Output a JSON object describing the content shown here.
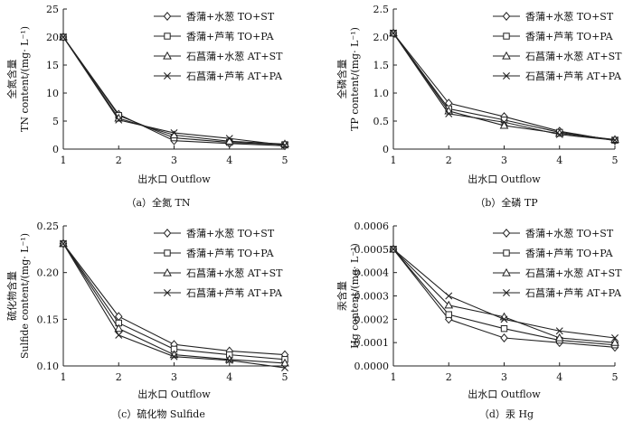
{
  "chart_data": [
    {
      "type": "line",
      "id": "tn",
      "caption": "（a）全氮 TN",
      "xlabel": "出水口 Outflow",
      "ylabel_cn": "全氮含量",
      "ylabel_en": "TN content/(mg· L⁻¹)",
      "categories": [
        1,
        2,
        3,
        4,
        5
      ],
      "ylim": [
        0,
        25
      ],
      "yticks": [
        0,
        5,
        10,
        15,
        20,
        25
      ],
      "ytick_labels": [
        "0",
        "5",
        "10",
        "15",
        "20",
        "25"
      ],
      "series": [
        {
          "name": "香蒲+水葱 TO+ST",
          "marker": "diamond",
          "values": [
            20,
            6.2,
            1.5,
            1.0,
            0.6
          ]
        },
        {
          "name": "香蒲+芦苇 TO+PA",
          "marker": "square",
          "values": [
            20,
            6.0,
            2.0,
            1.2,
            0.8
          ]
        },
        {
          "name": "石菖蒲+水葱 AT+ST",
          "marker": "triangle",
          "values": [
            20,
            5.5,
            2.5,
            1.4,
            0.9
          ]
        },
        {
          "name": "石菖蒲+芦苇 AT+PA",
          "marker": "x",
          "values": [
            20,
            5.2,
            2.9,
            1.9,
            0.7
          ]
        }
      ]
    },
    {
      "type": "line",
      "id": "tp",
      "caption": "（b）全磷 TP",
      "xlabel": "出水口 Outflow",
      "ylabel_cn": "全磷含量",
      "ylabel_en": "TP content/(mg· L⁻¹)",
      "categories": [
        1,
        2,
        3,
        4,
        5
      ],
      "ylim": [
        0,
        2.5
      ],
      "yticks": [
        0,
        0.5,
        1.0,
        1.5,
        2.0,
        2.5
      ],
      "ytick_labels": [
        "0",
        "0.5",
        "1.0",
        "1.5",
        "2.0",
        "2.5"
      ],
      "series": [
        {
          "name": "香蒲+水葱 TO+ST",
          "marker": "diamond",
          "values": [
            2.07,
            0.82,
            0.58,
            0.32,
            0.15
          ]
        },
        {
          "name": "香蒲+芦苇 TO+PA",
          "marker": "square",
          "values": [
            2.07,
            0.72,
            0.52,
            0.3,
            0.16
          ]
        },
        {
          "name": "石菖蒲+水葱 AT+ST",
          "marker": "triangle",
          "values": [
            2.07,
            0.68,
            0.42,
            0.28,
            0.17
          ]
        },
        {
          "name": "石菖蒲+芦苇 AT+PA",
          "marker": "x",
          "values": [
            2.07,
            0.63,
            0.48,
            0.26,
            0.16
          ]
        }
      ]
    },
    {
      "type": "line",
      "id": "sulfide",
      "caption": "（c）硫化物 Sulfide",
      "xlabel": "出水口 Outflow",
      "ylabel_cn": "硫化物含量",
      "ylabel_en": "Sulfide content/(mg· L⁻¹)",
      "categories": [
        1,
        2,
        3,
        4,
        5
      ],
      "ylim": [
        0.1,
        0.25
      ],
      "yticks": [
        0.1,
        0.15,
        0.2,
        0.25
      ],
      "ytick_labels": [
        "0.10",
        "0.15",
        "0.20",
        "0.25"
      ],
      "series": [
        {
          "name": "香蒲+水葱 TO+ST",
          "marker": "diamond",
          "values": [
            0.231,
            0.153,
            0.123,
            0.116,
            0.112
          ]
        },
        {
          "name": "香蒲+芦苇 TO+PA",
          "marker": "square",
          "values": [
            0.231,
            0.146,
            0.118,
            0.112,
            0.107
          ]
        },
        {
          "name": "石菖蒲+水葱 AT+ST",
          "marker": "triangle",
          "values": [
            0.231,
            0.14,
            0.112,
            0.107,
            0.103
          ]
        },
        {
          "name": "石菖蒲+芦苇 AT+PA",
          "marker": "x",
          "values": [
            0.231,
            0.133,
            0.11,
            0.106,
            0.098
          ]
        }
      ]
    },
    {
      "type": "line",
      "id": "hg",
      "caption": "（d）汞 Hg",
      "xlabel": "出水口 Outflow",
      "ylabel_cn": "汞含量",
      "ylabel_en": "Hg content/(mg· L⁻¹)",
      "categories": [
        1,
        2,
        3,
        4,
        5
      ],
      "ylim": [
        0,
        0.0006
      ],
      "yticks": [
        0,
        0.0001,
        0.0002,
        0.0003,
        0.0004,
        0.0005,
        0.0006
      ],
      "ytick_labels": [
        "0.0000",
        "0.0001",
        "0.0002",
        "0.0003",
        "0.0004",
        "0.0005",
        "0.0006"
      ],
      "series": [
        {
          "name": "香蒲+水葱 TO+ST",
          "marker": "diamond",
          "values": [
            0.0005,
            0.0002,
            0.00012,
            0.0001,
            8e-05
          ]
        },
        {
          "name": "香蒲+芦苇 TO+PA",
          "marker": "square",
          "values": [
            0.0005,
            0.00022,
            0.00016,
            0.00011,
            9e-05
          ]
        },
        {
          "name": "石菖蒲+水葱 AT+ST",
          "marker": "triangle",
          "values": [
            0.0005,
            0.00026,
            0.00021,
            0.00012,
            0.0001
          ]
        },
        {
          "name": "石菖蒲+芦苇 AT+PA",
          "marker": "x",
          "values": [
            0.0005,
            0.0003,
            0.0002,
            0.00015,
            0.00012
          ]
        }
      ]
    }
  ]
}
